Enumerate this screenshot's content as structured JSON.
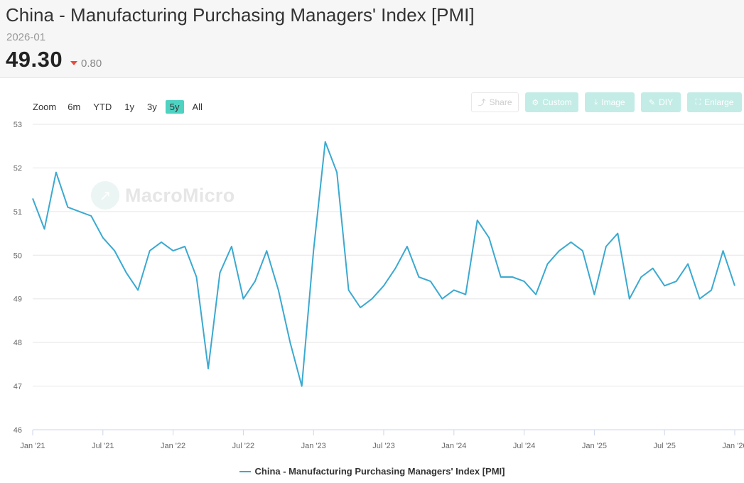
{
  "header": {
    "title": "China - Manufacturing Purchasing Managers' Index [PMI]",
    "period": "2026-01",
    "value": "49.30",
    "change": "0.80"
  },
  "zoom": {
    "label": "Zoom",
    "options": [
      "6m",
      "YTD",
      "1y",
      "3y",
      "5y",
      "All"
    ],
    "active": "5y"
  },
  "toolbar": {
    "share_label": "Share",
    "custom_label": "Custom",
    "image_label": "Image",
    "diy_label": "DIY",
    "enlarge_label": "Enlarge"
  },
  "watermark": "MacroMicro",
  "colors": {
    "series": "#3ba9d0",
    "active_zoom": "#4ed2c2",
    "down": "#e74c3c"
  },
  "chart_data": {
    "type": "line",
    "title": "China - Manufacturing Purchasing Managers' Index [PMI]",
    "xlabel": "",
    "ylabel": "",
    "ylim": [
      46,
      53
    ],
    "yticks": [
      46,
      47,
      48,
      49,
      50,
      51,
      52,
      53
    ],
    "xticks": [
      "Jan '21",
      "Jul '21",
      "Jan '22",
      "Jul '22",
      "Jan '23",
      "Jul '23",
      "Jan '24",
      "Jul '24",
      "Jan '25",
      "Jul '25",
      "Jan '26"
    ],
    "grid": true,
    "legend_position": "bottom",
    "series": [
      {
        "name": "China - Manufacturing Purchasing Managers' Index [PMI]",
        "x": [
          "2021-01",
          "2021-02",
          "2021-03",
          "2021-04",
          "2021-05",
          "2021-06",
          "2021-07",
          "2021-08",
          "2021-09",
          "2021-10",
          "2021-11",
          "2021-12",
          "2022-01",
          "2022-02",
          "2022-03",
          "2022-04",
          "2022-05",
          "2022-06",
          "2022-07",
          "2022-08",
          "2022-09",
          "2022-10",
          "2022-11",
          "2022-12",
          "2023-01",
          "2023-02",
          "2023-03",
          "2023-04",
          "2023-05",
          "2023-06",
          "2023-07",
          "2023-08",
          "2023-09",
          "2023-10",
          "2023-11",
          "2023-12",
          "2024-01",
          "2024-02",
          "2024-03",
          "2024-04",
          "2024-05",
          "2024-06",
          "2024-07",
          "2024-08",
          "2024-09",
          "2024-10",
          "2024-11",
          "2024-12",
          "2025-01",
          "2025-02",
          "2025-03",
          "2025-04",
          "2025-05",
          "2025-06",
          "2025-07",
          "2025-08",
          "2025-09",
          "2025-10",
          "2025-11",
          "2025-12",
          "2026-01"
        ],
        "values": [
          51.3,
          50.6,
          51.9,
          51.1,
          51.0,
          50.9,
          50.4,
          50.1,
          49.6,
          49.2,
          50.1,
          50.3,
          50.1,
          50.2,
          49.5,
          47.4,
          49.6,
          50.2,
          49.0,
          49.4,
          50.1,
          49.2,
          48.0,
          47.0,
          50.1,
          52.6,
          51.9,
          49.2,
          48.8,
          49.0,
          49.3,
          49.7,
          50.2,
          49.5,
          49.4,
          49.0,
          49.2,
          49.1,
          50.8,
          50.4,
          49.5,
          49.5,
          49.4,
          49.1,
          49.8,
          50.1,
          50.3,
          50.1,
          49.1,
          50.2,
          50.5,
          49.0,
          49.5,
          49.7,
          49.3,
          49.4,
          49.8,
          49.0,
          49.2,
          50.1,
          49.3
        ]
      }
    ]
  }
}
